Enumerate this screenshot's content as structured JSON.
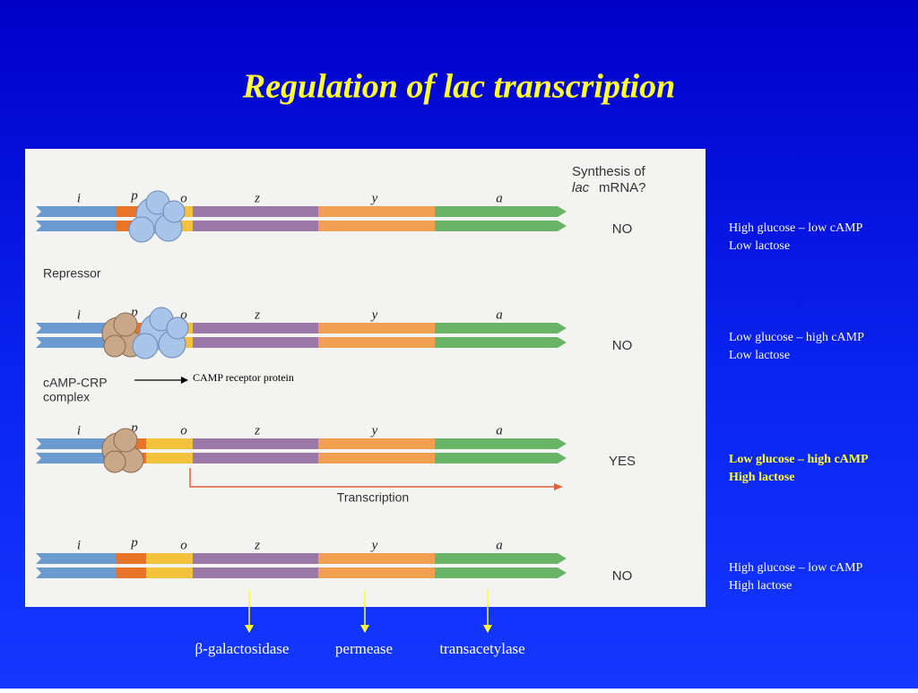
{
  "title": "Regulation of lac transcription",
  "figure": {
    "question": [
      "Synthesis of",
      "lac",
      "mRNA?"
    ],
    "gene_labels": [
      "i",
      "p",
      "o",
      "z",
      "y",
      "a"
    ],
    "repressor": "Repressor",
    "complex": [
      "cAMP-CRP",
      "complex"
    ],
    "transcription": "Transcription",
    "callout": "CAMP receptor protein"
  },
  "rows": [
    {
      "answer": "NO",
      "condition": [
        "High glucose – low cAMP",
        "Low lactose"
      ]
    },
    {
      "answer": "NO",
      "condition": [
        "Low glucose – high cAMP",
        "Low lactose"
      ]
    },
    {
      "answer": "YES",
      "condition": [
        "Low glucose – high cAMP",
        "High lactose"
      ]
    },
    {
      "answer": "NO",
      "condition": [
        "High glucose – low cAMP",
        "High lactose"
      ]
    }
  ],
  "products": [
    "β-galactosidase",
    "permease",
    "transacetylase"
  ]
}
